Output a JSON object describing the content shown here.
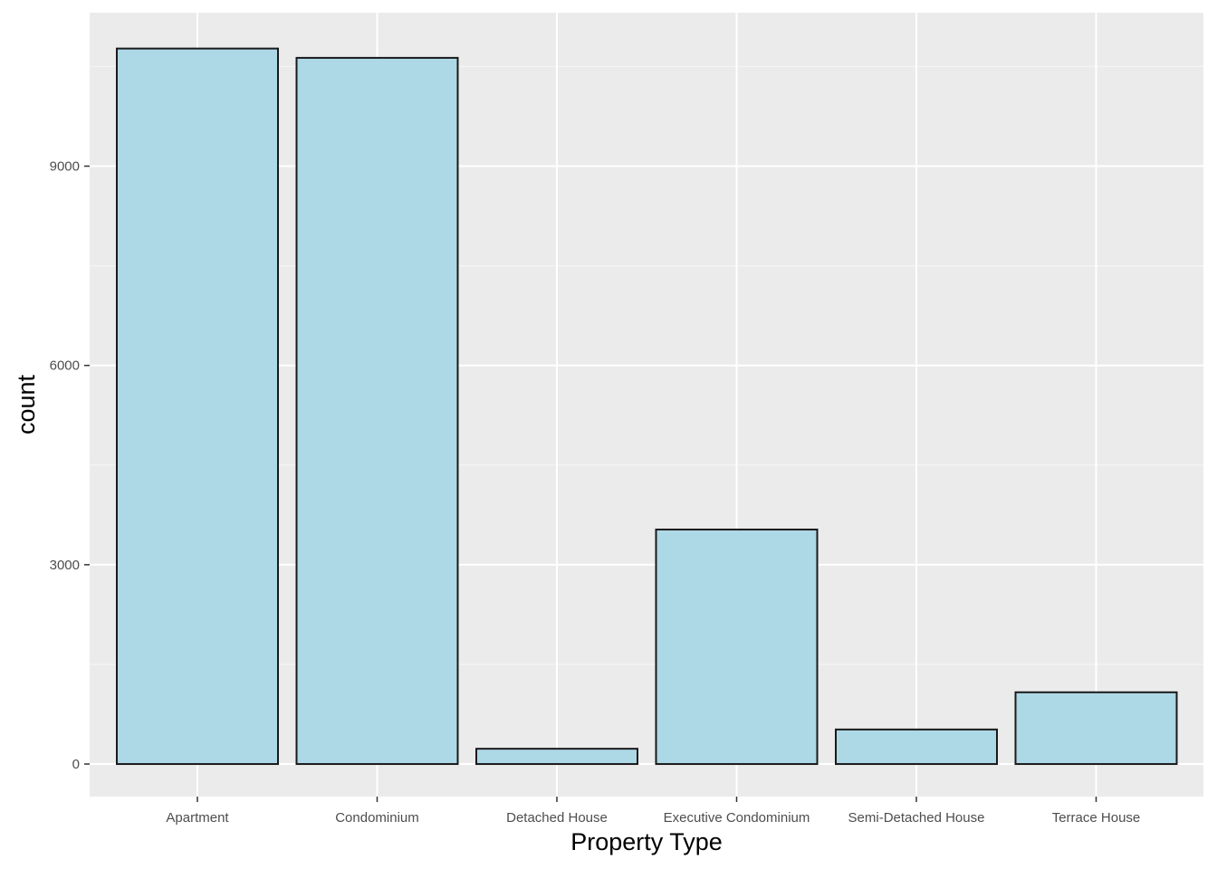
{
  "chart_data": {
    "type": "bar",
    "title": "",
    "xlabel": "Property Type",
    "ylabel": "count",
    "categories": [
      "Apartment",
      "Condominium",
      "Detached House",
      "Executive Condominium",
      "Semi-Detached House",
      "Terrace House"
    ],
    "values": [
      10770,
      10630,
      230,
      3530,
      520,
      1080
    ],
    "ylim": [
      -490,
      11310
    ],
    "yticks": [
      0,
      3000,
      6000,
      9000
    ],
    "ytick_labels": [
      "0",
      "3000",
      "6000",
      "9000"
    ],
    "grid": true,
    "legend": "none",
    "colors": {
      "bar_fill": "#ADD8E6",
      "bar_stroke": "#1a1a1a",
      "panel_bg": "#EBEBEB",
      "grid_major": "#FFFFFF",
      "grid_minor": "#F5F5F5",
      "tick_text": "#4d4d4d",
      "tick_mark": "#333333"
    }
  }
}
